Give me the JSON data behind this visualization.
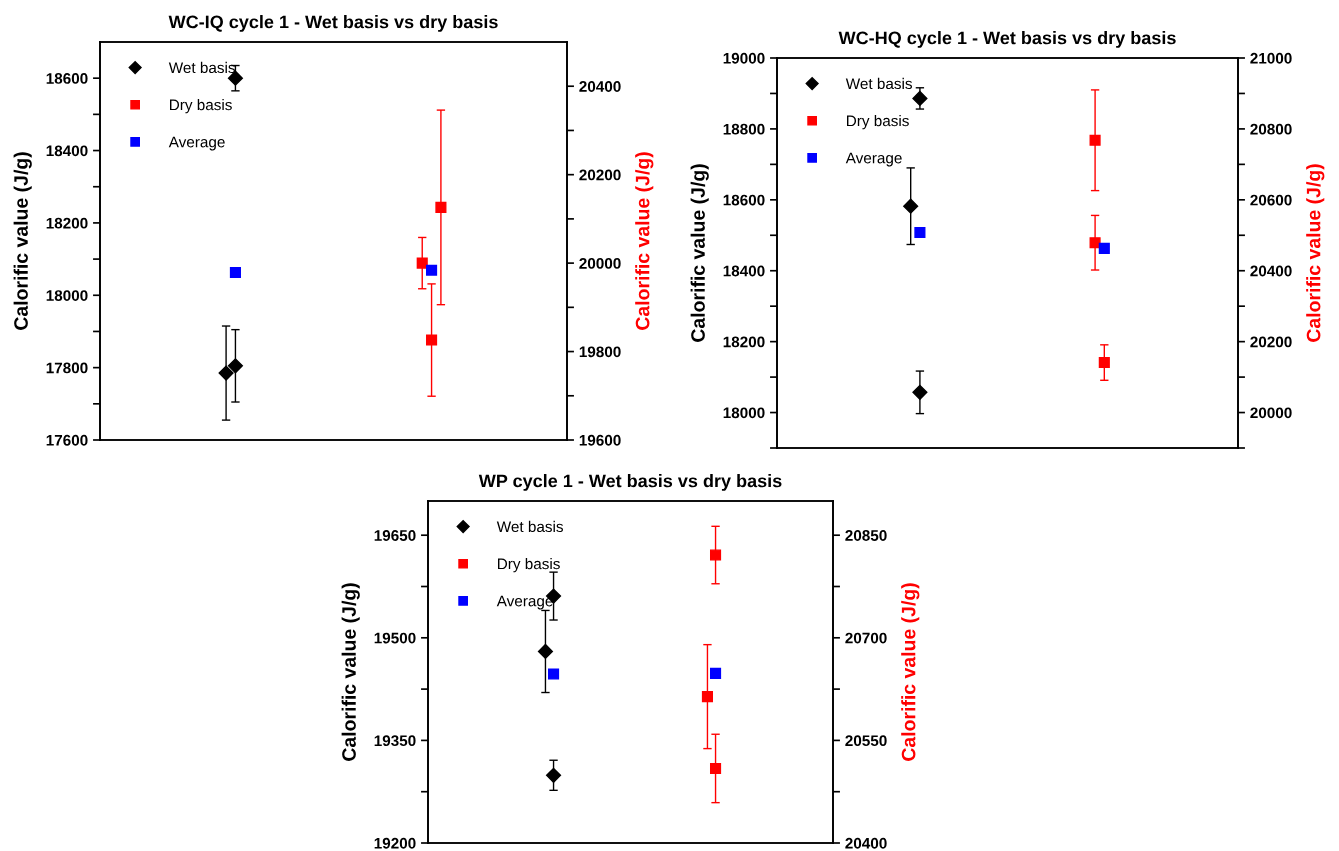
{
  "chart_data": [
    {
      "type": "scatter",
      "title": "WC-IQ cycle 1 - Wet basis vs dry basis",
      "ylabel": "Calorific value (J/g)",
      "y2label": "Calorific value (J/g)",
      "categories": [
        null,
        null,
        null,
        null,
        null,
        null,
        null,
        null,
        null,
        null,
        null,
        null,
        null,
        null,
        null,
        null,
        null,
        null,
        null,
        null,
        null,
        null,
        null,
        null,
        null,
        null,
        null,
        null,
        null,
        null,
        null,
        null,
        null,
        null,
        null,
        null,
        null,
        null,
        null,
        null,
        null,
        null,
        null,
        null,
        null,
        null,
        null,
        null,
        null,
        null
      ],
      "ylim": [
        17600,
        18700
      ],
      "y2lim": [
        19600,
        20500
      ],
      "yticks": [
        17600,
        {
          "value": 17700,
          "label": null
        },
        17800,
        {
          "value": 17900,
          "label": null
        },
        18000,
        {
          "value": 18100,
          "label": null
        },
        18200,
        {
          "value": 18300,
          "label": null
        },
        18400,
        {
          "value": 18500,
          "label": null
        },
        18600
      ],
      "y2ticks": [
        19600,
        {
          "value": 19700,
          "label": null
        },
        19800,
        {
          "value": 19900,
          "label": null
        },
        20000,
        {
          "value": 20100,
          "label": null
        },
        20200,
        {
          "value": 20300,
          "label": null
        },
        20400
      ],
      "tick_labels": "y",
      "legend": "top left",
      "series": [
        {
          "name": "Wet basis",
          "color": "#000000",
          "marker": "diamond",
          "values": [
            null,
            null,
            null,
            null,
            null,
            null,
            null,
            null,
            null,
            null,
            null,
            null,
            null,
            17785,
            17805,
            null,
            null,
            null,
            null,
            null,
            null,
            null,
            null,
            null,
            null,
            null,
            null,
            null,
            null,
            null,
            null,
            null,
            null,
            null,
            null,
            null,
            null,
            null,
            null,
            null,
            null,
            null,
            null,
            null,
            null,
            null,
            null,
            null,
            null,
            null
          ],
          "errors": [
            null,
            null,
            null,
            null,
            null,
            null,
            null,
            null,
            null,
            null,
            null,
            null,
            null,
            130,
            100,
            null,
            null,
            null,
            null,
            null,
            null,
            null,
            null,
            null,
            null,
            null,
            null,
            null,
            null,
            null,
            null,
            null,
            null,
            null,
            null,
            null,
            null,
            null,
            null,
            null,
            null,
            null,
            null,
            null,
            null,
            null,
            null,
            null,
            null,
            null
          ]
        },
        {
          "color": "#000000",
          "marker": "diamond",
          "values": [
            null,
            null,
            null,
            null,
            null,
            null,
            null,
            null,
            null,
            null,
            null,
            null,
            null,
            null,
            18600,
            null,
            null,
            null,
            null,
            null,
            null,
            null,
            null,
            null,
            null,
            null,
            null,
            null,
            null,
            null,
            null,
            null,
            null,
            null,
            null,
            null,
            null,
            null,
            null,
            null,
            null,
            null,
            null,
            null,
            null,
            null,
            null,
            null,
            null,
            null
          ],
          "errors": [
            null,
            null,
            null,
            null,
            null,
            null,
            null,
            null,
            null,
            null,
            null,
            null,
            null,
            null,
            35,
            null,
            null,
            null,
            null,
            null,
            null,
            null,
            null,
            null,
            null,
            null,
            null,
            null,
            null,
            null,
            null,
            null,
            null,
            null,
            null,
            null,
            null,
            null,
            null,
            null,
            null,
            null,
            null,
            null,
            null,
            null,
            null,
            null,
            null,
            null
          ]
        },
        {
          "name": "Dry basis",
          "color": "#ff0000",
          "marker": "square",
          "axis": "y2",
          "values": [
            null,
            null,
            null,
            null,
            null,
            null,
            null,
            null,
            null,
            null,
            null,
            null,
            null,
            null,
            null,
            null,
            null,
            null,
            null,
            null,
            null,
            null,
            null,
            null,
            null,
            null,
            null,
            null,
            null,
            null,
            null,
            null,
            null,
            null,
            20000,
            19826,
            20126,
            null,
            null,
            null,
            null,
            null,
            null,
            null,
            null,
            null,
            null,
            null,
            null,
            null
          ],
          "errors": [
            null,
            null,
            null,
            null,
            null,
            null,
            null,
            null,
            null,
            null,
            null,
            null,
            null,
            null,
            null,
            null,
            null,
            null,
            null,
            null,
            null,
            null,
            null,
            null,
            null,
            null,
            null,
            null,
            null,
            null,
            null,
            null,
            null,
            null,
            58,
            127,
            220,
            null,
            null,
            null,
            null,
            null,
            null,
            null,
            null,
            null,
            null,
            null,
            null,
            null
          ]
        },
        {
          "name": "Average",
          "color": "#0000ff",
          "marker": "square",
          "values": [
            null,
            null,
            null,
            null,
            null,
            null,
            null,
            null,
            null,
            null,
            null,
            null,
            null,
            null,
            18063,
            null,
            null,
            null,
            null,
            null,
            null,
            null,
            null,
            null,
            null,
            null,
            null,
            null,
            null,
            null,
            null,
            null,
            null,
            null,
            null,
            null,
            null,
            null,
            null,
            null,
            null,
            null,
            null,
            null,
            null,
            null,
            null,
            null,
            null,
            null
          ]
        },
        {
          "color": "#0000ff",
          "marker": "square",
          "axis": "y2",
          "values": [
            null,
            null,
            null,
            null,
            null,
            null,
            null,
            null,
            null,
            null,
            null,
            null,
            null,
            null,
            null,
            null,
            null,
            null,
            null,
            null,
            null,
            null,
            null,
            null,
            null,
            null,
            null,
            null,
            null,
            null,
            null,
            null,
            null,
            null,
            null,
            19984,
            null,
            null,
            null,
            null,
            null,
            null,
            null,
            null,
            null,
            null,
            null,
            null,
            null,
            null
          ]
        }
      ]
    },
    {
      "type": "scatter",
      "title": "WC-HQ cycle 1 - Wet basis vs dry basis",
      "ylabel": "Calorific value (J/g)",
      "y2label": "Calorific value (J/g)",
      "categories": [
        null,
        null,
        null,
        null,
        null,
        null,
        null,
        null,
        null,
        null,
        null,
        null,
        null,
        null,
        null,
        null,
        null,
        null,
        null,
        null,
        null,
        null,
        null,
        null,
        null,
        null,
        null,
        null,
        null,
        null,
        null,
        null,
        null,
        null,
        null,
        null,
        null,
        null,
        null,
        null,
        null,
        null,
        null,
        null,
        null,
        null,
        null,
        null,
        null,
        null
      ],
      "ylim": [
        17900,
        19000
      ],
      "y2lim": [
        19900,
        21000
      ],
      "yticks": [
        {
          "value": 17900,
          "label": null
        },
        18000,
        {
          "value": 18100,
          "label": null
        },
        18200,
        {
          "value": 18300,
          "label": null
        },
        18400,
        {
          "value": 18500,
          "label": null
        },
        18600,
        {
          "value": 18700,
          "label": null
        },
        18800,
        {
          "value": 18900,
          "label": null
        },
        19000
      ],
      "y2ticks": [
        {
          "value": 19900,
          "label": null
        },
        20000,
        {
          "value": 20100,
          "label": null
        },
        20200,
        {
          "value": 20300,
          "label": null
        },
        20400,
        {
          "value": 20500,
          "label": null
        },
        20600,
        {
          "value": 20700,
          "label": null
        },
        20800,
        {
          "value": 20900,
          "label": null
        },
        21000
      ],
      "tick_labels": "y",
      "legend": "top left",
      "series": [
        {
          "name": "Wet basis",
          "color": "#000000",
          "marker": "diamond",
          "values": [
            null,
            null,
            null,
            null,
            null,
            null,
            null,
            null,
            null,
            null,
            null,
            null,
            null,
            null,
            18582,
            18886,
            null,
            null,
            null,
            null,
            null,
            null,
            null,
            null,
            null,
            null,
            null,
            null,
            null,
            null,
            null,
            null,
            null,
            null,
            null,
            null,
            null,
            null,
            null,
            null,
            null,
            null,
            null,
            null,
            null,
            null,
            null,
            null,
            null,
            null
          ],
          "errors": [
            null,
            null,
            null,
            null,
            null,
            null,
            null,
            null,
            null,
            null,
            null,
            null,
            null,
            null,
            108,
            30,
            null,
            null,
            null,
            null,
            null,
            null,
            null,
            null,
            null,
            null,
            null,
            null,
            null,
            null,
            null,
            null,
            null,
            null,
            null,
            null,
            null,
            null,
            null,
            null,
            null,
            null,
            null,
            null,
            null,
            null,
            null,
            null,
            null,
            null
          ]
        },
        {
          "color": "#000000",
          "marker": "diamond",
          "values": [
            null,
            null,
            null,
            null,
            null,
            null,
            null,
            null,
            null,
            null,
            null,
            null,
            null,
            null,
            null,
            18057,
            null,
            null,
            null,
            null,
            null,
            null,
            null,
            null,
            null,
            null,
            null,
            null,
            null,
            null,
            null,
            null,
            null,
            null,
            null,
            null,
            null,
            null,
            null,
            null,
            null,
            null,
            null,
            null,
            null,
            null,
            null,
            null,
            null,
            null
          ],
          "errors": [
            null,
            null,
            null,
            null,
            null,
            null,
            null,
            null,
            null,
            null,
            null,
            null,
            null,
            null,
            null,
            60,
            null,
            null,
            null,
            null,
            null,
            null,
            null,
            null,
            null,
            null,
            null,
            null,
            null,
            null,
            null,
            null,
            null,
            null,
            null,
            null,
            null,
            null,
            null,
            null,
            null,
            null,
            null,
            null,
            null,
            null,
            null,
            null,
            null,
            null
          ]
        },
        {
          "name": "Dry basis",
          "color": "#ff0000",
          "marker": "square",
          "axis": "y2",
          "values": [
            null,
            null,
            null,
            null,
            null,
            null,
            null,
            null,
            null,
            null,
            null,
            null,
            null,
            null,
            null,
            null,
            null,
            null,
            null,
            null,
            null,
            null,
            null,
            null,
            null,
            null,
            null,
            null,
            null,
            null,
            null,
            null,
            null,
            null,
            20768,
            20141,
            null,
            null,
            null,
            null,
            null,
            null,
            null,
            null,
            null,
            null,
            null,
            null,
            null,
            null
          ],
          "errors": [
            null,
            null,
            null,
            null,
            null,
            null,
            null,
            null,
            null,
            null,
            null,
            null,
            null,
            null,
            null,
            null,
            null,
            null,
            null,
            null,
            null,
            null,
            null,
            null,
            null,
            null,
            null,
            null,
            null,
            null,
            null,
            null,
            null,
            null,
            142,
            50,
            null,
            null,
            null,
            null,
            null,
            null,
            null,
            null,
            null,
            null,
            null,
            null,
            null,
            null
          ]
        },
        {
          "color": "#ff0000",
          "marker": "square",
          "axis": "y2",
          "values": [
            null,
            null,
            null,
            null,
            null,
            null,
            null,
            null,
            null,
            null,
            null,
            null,
            null,
            null,
            null,
            null,
            null,
            null,
            null,
            null,
            null,
            null,
            null,
            null,
            null,
            null,
            null,
            null,
            null,
            null,
            null,
            null,
            null,
            null,
            20479,
            null,
            null,
            null,
            null,
            null,
            null,
            null,
            null,
            null,
            null,
            null,
            null,
            null,
            null,
            null
          ],
          "errors": [
            null,
            null,
            null,
            null,
            null,
            null,
            null,
            null,
            null,
            null,
            null,
            null,
            null,
            null,
            null,
            null,
            null,
            null,
            null,
            null,
            null,
            null,
            null,
            null,
            null,
            null,
            null,
            null,
            null,
            null,
            null,
            null,
            null,
            null,
            77,
            null,
            null,
            null,
            null,
            null,
            null,
            null,
            null,
            null,
            null,
            null,
            null,
            null,
            null,
            null
          ]
        },
        {
          "name": "Average",
          "color": "#0000ff",
          "marker": "square",
          "values": [
            null,
            null,
            null,
            null,
            null,
            null,
            null,
            null,
            null,
            null,
            null,
            null,
            null,
            null,
            null,
            18508,
            null,
            null,
            null,
            null,
            null,
            null,
            null,
            null,
            null,
            null,
            null,
            null,
            null,
            null,
            null,
            null,
            null,
            null,
            null,
            null,
            null,
            null,
            null,
            null,
            null,
            null,
            null,
            null,
            null,
            null,
            null,
            null,
            null,
            null
          ]
        },
        {
          "color": "#0000ff",
          "marker": "square",
          "axis": "y2",
          "values": [
            null,
            null,
            null,
            null,
            null,
            null,
            null,
            null,
            null,
            null,
            null,
            null,
            null,
            null,
            null,
            null,
            null,
            null,
            null,
            null,
            null,
            null,
            null,
            null,
            null,
            null,
            null,
            null,
            null,
            null,
            null,
            null,
            null,
            null,
            null,
            20463,
            null,
            null,
            null,
            null,
            null,
            null,
            null,
            null,
            null,
            null,
            null,
            null,
            null,
            null
          ]
        }
      ]
    },
    {
      "type": "scatter",
      "title": "WP cycle 1 - Wet basis vs dry basis",
      "ylabel": "Calorific value (J/g)",
      "y2label": "Calorific value (J/g)",
      "categories": [
        null,
        null,
        null,
        null,
        null,
        null,
        null,
        null,
        null,
        null,
        null,
        null,
        null,
        null,
        null,
        null,
        null,
        null,
        null,
        null,
        null,
        null,
        null,
        null,
        null,
        null,
        null,
        null,
        null,
        null,
        null,
        null,
        null,
        null,
        null,
        null,
        null,
        null,
        null,
        null,
        null,
        null,
        null,
        null,
        null,
        null,
        null,
        null,
        null,
        null
      ],
      "ylim": [
        19200,
        19700
      ],
      "y2lim": [
        20400,
        20900
      ],
      "yticks": [
        19200,
        {
          "value": 19275,
          "label": null
        },
        19350,
        {
          "value": 19425,
          "label": null
        },
        19500,
        {
          "value": 19575,
          "label": null
        },
        19650
      ],
      "y2ticks": [
        20400,
        {
          "value": 20475,
          "label": null
        },
        20550,
        {
          "value": 20625,
          "label": null
        },
        20700,
        {
          "value": 20775,
          "label": null
        },
        20850
      ],
      "tick_labels": "y",
      "legend": "top left",
      "series": [
        {
          "name": "Wet basis",
          "color": "#000000",
          "marker": "diamond",
          "values": [
            null,
            null,
            null,
            null,
            null,
            null,
            null,
            null,
            null,
            null,
            null,
            null,
            null,
            null,
            19480,
            19561,
            null,
            null,
            null,
            null,
            null,
            null,
            null,
            null,
            null,
            null,
            null,
            null,
            null,
            null,
            null,
            null,
            null,
            null,
            null,
            null,
            null,
            null,
            null,
            null,
            null,
            null,
            null,
            null,
            null,
            null,
            null,
            null,
            null,
            null
          ],
          "errors": [
            null,
            null,
            null,
            null,
            null,
            null,
            null,
            null,
            null,
            null,
            null,
            null,
            null,
            null,
            60,
            35,
            null,
            null,
            null,
            null,
            null,
            null,
            null,
            null,
            null,
            null,
            null,
            null,
            null,
            null,
            null,
            null,
            null,
            null,
            null,
            null,
            null,
            null,
            null,
            null,
            null,
            null,
            null,
            null,
            null,
            null,
            null,
            null,
            null,
            null
          ]
        },
        {
          "color": "#000000",
          "marker": "diamond",
          "values": [
            null,
            null,
            null,
            null,
            null,
            null,
            null,
            null,
            null,
            null,
            null,
            null,
            null,
            null,
            null,
            19299,
            null,
            null,
            null,
            null,
            null,
            null,
            null,
            null,
            null,
            null,
            null,
            null,
            null,
            null,
            null,
            null,
            null,
            null,
            null,
            null,
            null,
            null,
            null,
            null,
            null,
            null,
            null,
            null,
            null,
            null,
            null,
            null,
            null,
            null
          ],
          "errors": [
            null,
            null,
            null,
            null,
            null,
            null,
            null,
            null,
            null,
            null,
            null,
            null,
            null,
            null,
            null,
            22,
            null,
            null,
            null,
            null,
            null,
            null,
            null,
            null,
            null,
            null,
            null,
            null,
            null,
            null,
            null,
            null,
            null,
            null,
            null,
            null,
            null,
            null,
            null,
            null,
            null,
            null,
            null,
            null,
            null,
            null,
            null,
            null,
            null,
            null
          ]
        },
        {
          "name": "Dry basis",
          "color": "#ff0000",
          "marker": "square",
          "axis": "y2",
          "values": [
            null,
            null,
            null,
            null,
            null,
            null,
            null,
            null,
            null,
            null,
            null,
            null,
            null,
            null,
            null,
            null,
            null,
            null,
            null,
            null,
            null,
            null,
            null,
            null,
            null,
            null,
            null,
            null,
            null,
            null,
            null,
            null,
            null,
            null,
            20614,
            20821,
            null,
            null,
            null,
            null,
            null,
            null,
            null,
            null,
            null,
            null,
            null,
            null,
            null,
            null
          ],
          "errors": [
            null,
            null,
            null,
            null,
            null,
            null,
            null,
            null,
            null,
            null,
            null,
            null,
            null,
            null,
            null,
            null,
            null,
            null,
            null,
            null,
            null,
            null,
            null,
            null,
            null,
            null,
            null,
            null,
            null,
            null,
            null,
            null,
            null,
            null,
            76,
            42,
            null,
            null,
            null,
            null,
            null,
            null,
            null,
            null,
            null,
            null,
            null,
            null,
            null,
            null
          ]
        },
        {
          "color": "#ff0000",
          "marker": "square",
          "axis": "y2",
          "values": [
            null,
            null,
            null,
            null,
            null,
            null,
            null,
            null,
            null,
            null,
            null,
            null,
            null,
            null,
            null,
            null,
            null,
            null,
            null,
            null,
            null,
            null,
            null,
            null,
            null,
            null,
            null,
            null,
            null,
            null,
            null,
            null,
            null,
            null,
            null,
            20509,
            null,
            null,
            null,
            null,
            null,
            null,
            null,
            null,
            null,
            null,
            null,
            null,
            null,
            null
          ],
          "errors": [
            null,
            null,
            null,
            null,
            null,
            null,
            null,
            null,
            null,
            null,
            null,
            null,
            null,
            null,
            null,
            null,
            null,
            null,
            null,
            null,
            null,
            null,
            null,
            null,
            null,
            null,
            null,
            null,
            null,
            null,
            null,
            null,
            null,
            null,
            null,
            50,
            null,
            null,
            null,
            null,
            null,
            null,
            null,
            null,
            null,
            null,
            null,
            null,
            null,
            null
          ]
        },
        {
          "name": "Average",
          "color": "#0000ff",
          "marker": "square",
          "values": [
            null,
            null,
            null,
            null,
            null,
            null,
            null,
            null,
            null,
            null,
            null,
            null,
            null,
            null,
            null,
            19447,
            null,
            null,
            null,
            null,
            null,
            null,
            null,
            null,
            null,
            null,
            null,
            null,
            null,
            null,
            null,
            null,
            null,
            null,
            null,
            null,
            null,
            null,
            null,
            null,
            null,
            null,
            null,
            null,
            null,
            null,
            null,
            null,
            null,
            null
          ]
        },
        {
          "color": "#0000ff",
          "marker": "square",
          "axis": "y2",
          "values": [
            null,
            null,
            null,
            null,
            null,
            null,
            null,
            null,
            null,
            null,
            null,
            null,
            null,
            null,
            null,
            null,
            null,
            null,
            null,
            null,
            null,
            null,
            null,
            null,
            null,
            null,
            null,
            null,
            null,
            null,
            null,
            null,
            null,
            null,
            null,
            20648,
            null,
            null,
            null,
            null,
            null,
            null,
            null,
            null,
            null,
            null,
            null,
            null,
            null,
            null
          ]
        }
      ]
    }
  ]
}
